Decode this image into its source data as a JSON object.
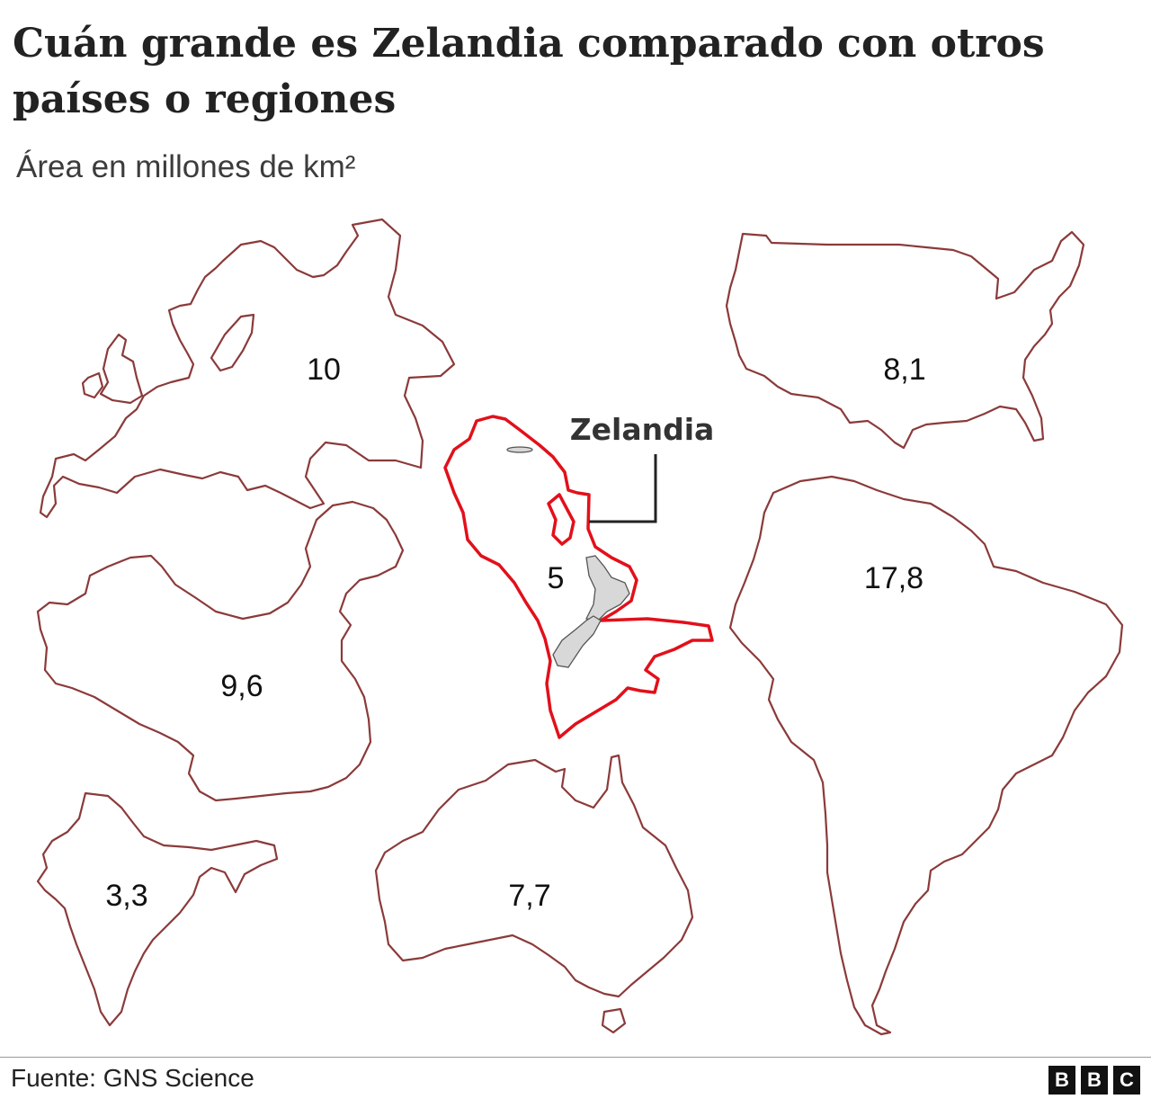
{
  "title": "Cuán grande es Zelandia comparado con otros países o regiones",
  "subtitle": "Área en millones de km²",
  "regions": [
    {
      "id": "europe",
      "area_label": "10"
    },
    {
      "id": "usa",
      "area_label": "8,1"
    },
    {
      "id": "zealandia",
      "area_label": "5",
      "callout": "Zelandia",
      "highlighted": true
    },
    {
      "id": "south-america",
      "area_label": "17,8"
    },
    {
      "id": "china",
      "area_label": "9,6"
    },
    {
      "id": "india",
      "area_label": "3,3"
    },
    {
      "id": "australia",
      "area_label": "7,7"
    }
  ],
  "colors": {
    "outline": "#8b3a3a",
    "highlight": "#e2101a",
    "text": "#222222"
  },
  "footer": {
    "source": "Fuente: GNS Science",
    "brand": [
      "B",
      "B",
      "C"
    ]
  }
}
